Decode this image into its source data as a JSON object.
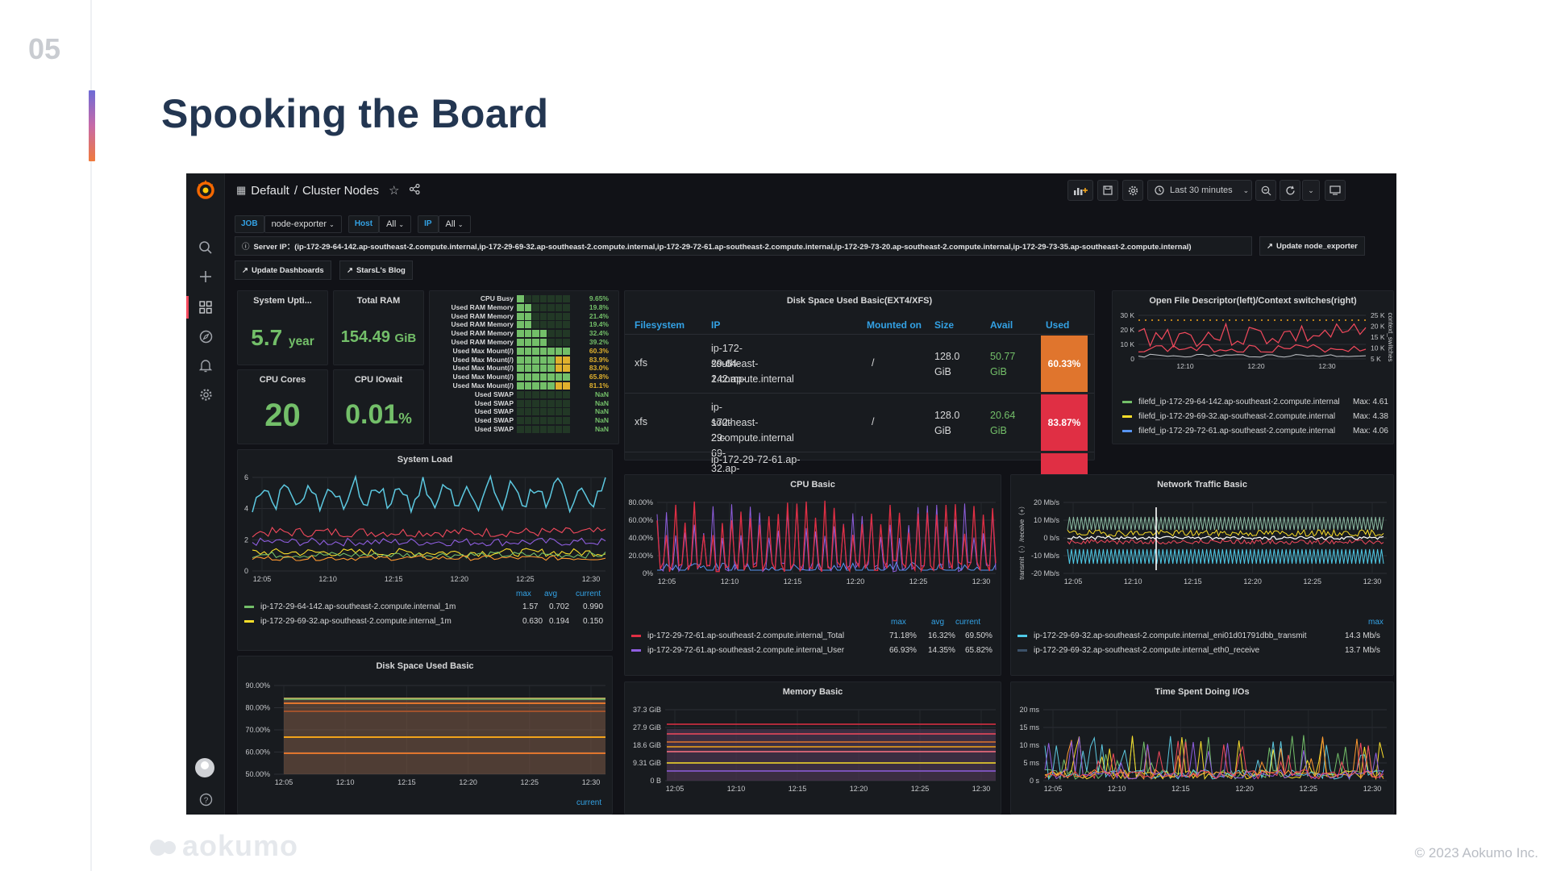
{
  "slide": {
    "number": "05",
    "title": "Spooking the Board",
    "brand": "aokumo",
    "copyright": "© 2023 Aokumo Inc."
  },
  "topbar": {
    "folder": "Default",
    "separator": "/",
    "dashboard": "Cluster Nodes",
    "time_range": "Last 30 minutes"
  },
  "variables": {
    "job_label": "JOB",
    "job_value": "node-exporter",
    "host_label": "Host",
    "host_value": "All",
    "ip_label": "IP",
    "ip_value": "All"
  },
  "server_ip": "Server IP：(ip-172-29-64-142.ap-southeast-2.compute.internal,ip-172-29-69-32.ap-southeast-2.compute.internal,ip-172-29-72-61.ap-southeast-2.compute.internal,ip-172-29-73-20.ap-southeast-2.compute.internal,ip-172-29-73-35.ap-southeast-2.compute.internal)",
  "links": {
    "update_node_exporter": "Update node_exporter",
    "update_dashboards": "Update Dashboards",
    "blog": "StarsL's Blog"
  },
  "stats": {
    "uptime_title": "System Upti...",
    "uptime_value": "5.7",
    "uptime_unit": "year",
    "ram_title": "Total RAM",
    "ram_value": "154.49",
    "ram_unit": "GiB",
    "cores_title": "CPU Cores",
    "cores_value": "20",
    "iowait_title": "CPU IOwait",
    "iowait_value": "0.01",
    "iowait_unit": "%"
  },
  "bargauge": {
    "labels": [
      "CPU Busy",
      "Used RAM Memory",
      "Used RAM Memory",
      "Used RAM Memory",
      "Used RAM Memory",
      "Used RAM Memory",
      "Used Max Mount(/)",
      "Used Max Mount(/)",
      "Used Max Mount(/)",
      "Used Max Mount(/)",
      "Used Max Mount(/)",
      "Used SWAP",
      "Used SWAP",
      "Used SWAP",
      "Used SWAP",
      "Used SWAP"
    ],
    "values": [
      "9.65%",
      "19.8%",
      "21.4%",
      "19.4%",
      "32.4%",
      "39.2%",
      "60.3%",
      "83.9%",
      "83.0%",
      "65.8%",
      "81.1%",
      "NaN",
      "NaN",
      "NaN",
      "NaN",
      "NaN"
    ],
    "fill": [
      0.0965,
      0.198,
      0.214,
      0.194,
      0.324,
      0.392,
      0.603,
      0.839,
      0.83,
      0.658,
      0.811,
      0,
      0,
      0,
      0,
      0
    ]
  },
  "disk_table": {
    "title": "Disk Space Used Basic(EXT4/XFS)",
    "headers": [
      "Filesystem",
      "IP",
      "Mounted on",
      "Size",
      "Avail",
      "Used"
    ],
    "rows": [
      {
        "fs": "xfs",
        "ip1": "ip-172-29-64-142.ap-",
        "ip2": "southeast-",
        "ip3": "2.compute.internal",
        "mount": "/",
        "size1": "128.0",
        "size2": "GiB",
        "avail1": "50.77",
        "avail2": "GiB",
        "used": "60.33%",
        "used_color": "#e0752d"
      },
      {
        "fs": "xfs",
        "ip1": "ip-172-29-69-32.ap-",
        "ip2": "southeast-",
        "ip3": "2.compute.internal",
        "mount": "/",
        "size1": "128.0",
        "size2": "GiB",
        "avail1": "20.64",
        "avail2": "GiB",
        "used": "83.87%",
        "used_color": "#e02f44"
      },
      {
        "fs": "",
        "ip1": "ip-172-29-72-61.ap-",
        "ip2": "",
        "ip3": "",
        "mount": "",
        "size1": "",
        "size2": "",
        "avail1": "",
        "avail2": "",
        "used": "",
        "used_color": "#e02f44"
      }
    ]
  },
  "ofd": {
    "title": "Open File Descriptor(left)/Context switches(right)",
    "left_ticks": [
      "30 K",
      "20 K",
      "10 K",
      "0"
    ],
    "right_ticks": [
      "25 K",
      "20 K",
      "15 K",
      "10 K",
      "5 K"
    ],
    "x_ticks": [
      "12:10",
      "12:20",
      "12:30"
    ],
    "right_axis_label": "context_switches",
    "legend": [
      {
        "name": "filefd_ip-172-29-64-142.ap-southeast-2.compute.internal",
        "stat": "Max: 4.61",
        "color": "#73bf69"
      },
      {
        "name": "filefd_ip-172-29-69-32.ap-southeast-2.compute.internal",
        "stat": "Max: 4.38",
        "color": "#fade2a"
      },
      {
        "name": "filefd_ip-172-29-72-61.ap-southeast-2.compute.internal",
        "stat": "Max: 4.06",
        "color": "#5794f2"
      }
    ]
  },
  "system_load": {
    "title": "System Load",
    "y_ticks": [
      "6",
      "4",
      "2",
      "0"
    ],
    "x_ticks": [
      "12:05",
      "12:10",
      "12:15",
      "12:20",
      "12:25",
      "12:30"
    ],
    "cols": [
      "max",
      "avg",
      "current"
    ],
    "legend": [
      {
        "name": "ip-172-29-64-142.ap-southeast-2.compute.internal_1m",
        "max": "1.57",
        "avg": "0.702",
        "current": "0.990",
        "color": "#73bf69"
      },
      {
        "name": "ip-172-29-69-32.ap-southeast-2.compute.internal_1m",
        "max": "0.630",
        "avg": "0.194",
        "current": "0.150",
        "color": "#fade2a"
      }
    ]
  },
  "cpu_basic": {
    "title": "CPU Basic",
    "y_ticks": [
      "80.00%",
      "60.00%",
      "40.00%",
      "20.00%",
      "0%"
    ],
    "x_ticks": [
      "12:05",
      "12:10",
      "12:15",
      "12:20",
      "12:25",
      "12:30"
    ],
    "cols": [
      "max",
      "avg",
      "current"
    ],
    "legend": [
      {
        "name": "ip-172-29-72-61.ap-southeast-2.compute.internal_Total",
        "max": "71.18%",
        "avg": "16.32%",
        "current": "69.50%",
        "color": "#e02f44"
      },
      {
        "name": "ip-172-29-72-61.ap-southeast-2.compute.internal_User",
        "max": "66.93%",
        "avg": "14.35%",
        "current": "65.82%",
        "color": "#8f5ee0"
      }
    ]
  },
  "network": {
    "title": "Network Traffic Basic",
    "y_ticks": [
      "20 Mb/s",
      "10 Mb/s",
      "0 b/s",
      "-10 Mb/s",
      "-20 Mb/s"
    ],
    "x_ticks": [
      "12:05",
      "12:10",
      "12:15",
      "12:20",
      "12:25",
      "12:30"
    ],
    "y_label": "transmit（-）/receive（+）",
    "cols": [
      "max"
    ],
    "legend": [
      {
        "name": "ip-172-29-69-32.ap-southeast-2.compute.internal_eni01d01791dbb_transmit",
        "max": "14.3 Mb/s",
        "color": "#4fc9e6"
      },
      {
        "name": "ip-172-29-69-32.ap-southeast-2.compute.internal_eth0_receive",
        "max": "13.7 Mb/s",
        "color": "#3b5169"
      }
    ]
  },
  "disk_basic": {
    "title": "Disk Space Used Basic",
    "y_ticks": [
      "90.00%",
      "80.00%",
      "70.00%",
      "60.00%",
      "50.00%"
    ],
    "x_ticks": [
      "12:05",
      "12:10",
      "12:15",
      "12:20",
      "12:25",
      "12:30"
    ],
    "col": "current"
  },
  "memory": {
    "title": "Memory Basic",
    "y_ticks": [
      "37.3 GiB",
      "27.9 GiB",
      "18.6 GiB",
      "9.31 GiB",
      "0 B"
    ],
    "x_ticks": [
      "12:05",
      "12:10",
      "12:15",
      "12:20",
      "12:25",
      "12:30"
    ]
  },
  "io": {
    "title": "Time Spent Doing I/Os",
    "y_ticks": [
      "20 ms",
      "15 ms",
      "10 ms",
      "5 ms",
      "0 s"
    ],
    "x_ticks": [
      "12:05",
      "12:10",
      "12:15",
      "12:20",
      "12:25",
      "12:30"
    ]
  },
  "colors": {
    "accent": "#33a2e5",
    "green": "#73bf69",
    "red": "#e02f44",
    "orange": "#e0752d",
    "panel_bg": "#181b1f",
    "dash_bg": "#111217"
  }
}
